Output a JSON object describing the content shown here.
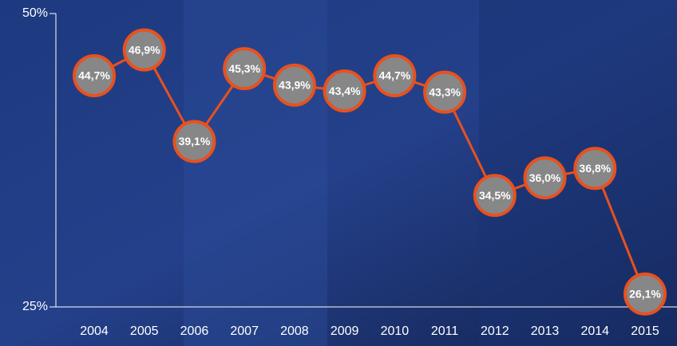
{
  "chart_data": {
    "type": "line",
    "categories": [
      "2004",
      "2005",
      "2006",
      "2007",
      "2008",
      "2009",
      "2010",
      "2011",
      "2012",
      "2013",
      "2014",
      "2015"
    ],
    "series": [
      {
        "color": "#e8511e",
        "values": [
          44.7,
          46.9,
          39.1,
          45.3,
          43.9,
          43.4,
          44.7,
          43.3,
          34.5,
          36.0,
          36.8,
          26.1
        ],
        "value_labels": [
          "44,7%",
          "46,9%",
          "39,1%",
          "45,3%",
          "43,9%",
          "43,4%",
          "44,7%",
          "43,3%",
          "34,5%",
          "36,0%",
          "36,8%",
          "26,1%"
        ]
      }
    ],
    "ylim": [
      25,
      50
    ],
    "yticks": [
      {
        "value": 25,
        "label": "25%"
      },
      {
        "value": 50,
        "label": "50%"
      }
    ]
  }
}
